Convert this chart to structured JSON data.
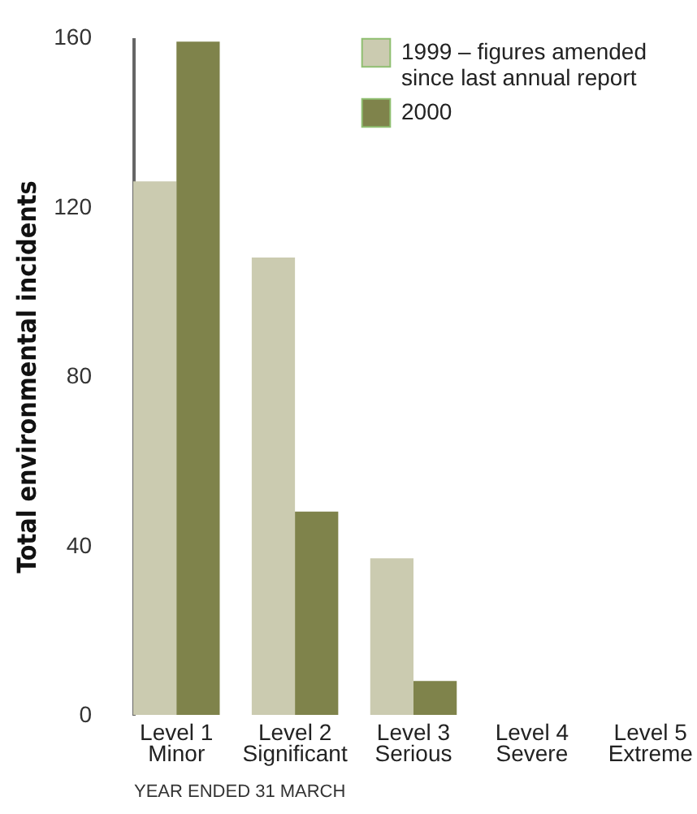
{
  "chart_data": {
    "type": "bar",
    "xlabel": "YEAR ENDED 31 MARCH",
    "ylabel": "Total environmental incidents",
    "categories": [
      "Level 1\nMinor",
      "Level 2\nSignificant",
      "Level 3\nSerious",
      "Level 4\nSevere",
      "Level 5\nExtreme"
    ],
    "series": [
      {
        "name": "1999 – figures amended\nsince last annual report",
        "color": "#cbcbb0",
        "values": [
          126,
          108,
          37,
          0,
          0
        ]
      },
      {
        "name": "2000",
        "color": "#7f834b",
        "values": [
          159,
          48,
          8,
          0,
          0
        ]
      }
    ],
    "ylim": [
      0,
      160
    ],
    "yticks": [
      0,
      40,
      80,
      120,
      160
    ],
    "grid": false,
    "legend": "top right"
  }
}
